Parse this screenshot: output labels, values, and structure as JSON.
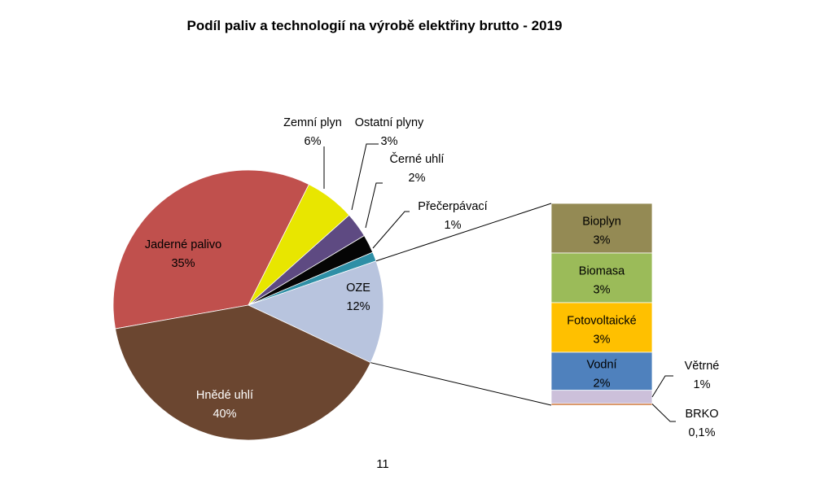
{
  "chart_data": {
    "type": "pie",
    "title": "Podíl paliv a technologií na výrobě elektřiny brutto - 2019",
    "slices": [
      {
        "label": "Jaderné palivo",
        "value_label": "35%",
        "value": 35.2,
        "color": "#C0504D"
      },
      {
        "label": "Zemní plyn",
        "value_label": "6%",
        "value": 6.0,
        "color": "#E8E600"
      },
      {
        "label": "Ostatní plyny",
        "value_label": "3%",
        "value": 3.0,
        "color": "#5E4A82"
      },
      {
        "label": "Černé uhlí",
        "value_label": "2%",
        "value": 2.2,
        "color": "#050505"
      },
      {
        "label": "Přečerpávací",
        "value_label": "1%",
        "value": 1.1,
        "color": "#2E8FA6"
      },
      {
        "label": "OZE",
        "value_label": "12%",
        "value": 12.3,
        "color": "#B8C4DE"
      },
      {
        "label": "Hnědé uhlí",
        "value_label": "40%",
        "value": 40.2,
        "color": "#6B4630"
      }
    ],
    "oze_breakdown": [
      {
        "label": "Bioplyn",
        "value_label": "3%",
        "value": 3.0,
        "color": "#948A54"
      },
      {
        "label": "Biomasa",
        "value_label": "3%",
        "value": 3.0,
        "color": "#9BBB59"
      },
      {
        "label": "Fotovoltaické",
        "value_label": "3%",
        "value": 3.0,
        "color": "#FFC000"
      },
      {
        "label": "Vodní",
        "value_label": "2%",
        "value": 2.3,
        "color": "#4F81BD"
      },
      {
        "label": "Větrné",
        "value_label": "1%",
        "value": 0.8,
        "color": "#CCC0DA"
      },
      {
        "label": "BRKO",
        "value_label": "0,1%",
        "value": 0.1,
        "color": "#C55A11"
      }
    ]
  },
  "page_number": "11"
}
